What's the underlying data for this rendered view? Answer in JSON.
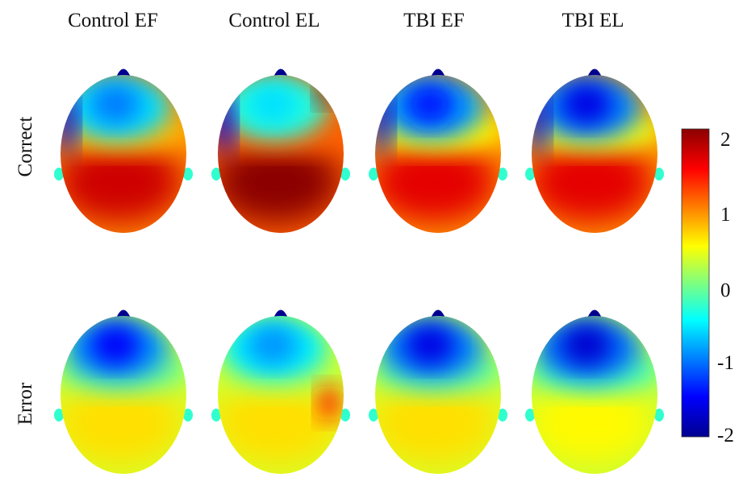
{
  "columns": [
    {
      "id": "control-ef",
      "title": "Control EF"
    },
    {
      "id": "control-el",
      "title": "Control EL"
    },
    {
      "id": "tbi-ef",
      "title": "TBI EF"
    },
    {
      "id": "tbi-el",
      "title": "TBI EL"
    }
  ],
  "rows": [
    {
      "id": "correct",
      "label": "Correct"
    },
    {
      "id": "error",
      "label": "Error"
    }
  ],
  "colorbar": {
    "ticks": [
      "2",
      "1",
      "0",
      "-1",
      "-2"
    ],
    "range": [
      -2,
      2
    ],
    "colormap": [
      "#00008f",
      "#0000ff",
      "#00ffff",
      "#ffff00",
      "#ff0000",
      "#800000"
    ]
  },
  "maps": {
    "correct": [
      {
        "frontal_center": -1.0,
        "posterior": 1.7,
        "peak_right_frontal": 0
      },
      {
        "frontal_center": -0.6,
        "posterior": 2.0,
        "peak_right_frontal": 2.0
      },
      {
        "frontal_center": -1.4,
        "posterior": 1.6,
        "peak_right_frontal": 0
      },
      {
        "frontal_center": -1.6,
        "posterior": 1.6,
        "peak_right_frontal": 0
      }
    ],
    "error": [
      {
        "frontal_center": -1.5,
        "posterior": 0.6
      },
      {
        "frontal_center": -0.9,
        "posterior": 0.6,
        "peak_right_temporal": 1.4
      },
      {
        "frontal_center": -1.6,
        "posterior": 0.6
      },
      {
        "frontal_center": -1.7,
        "posterior": 0.5
      }
    ]
  }
}
